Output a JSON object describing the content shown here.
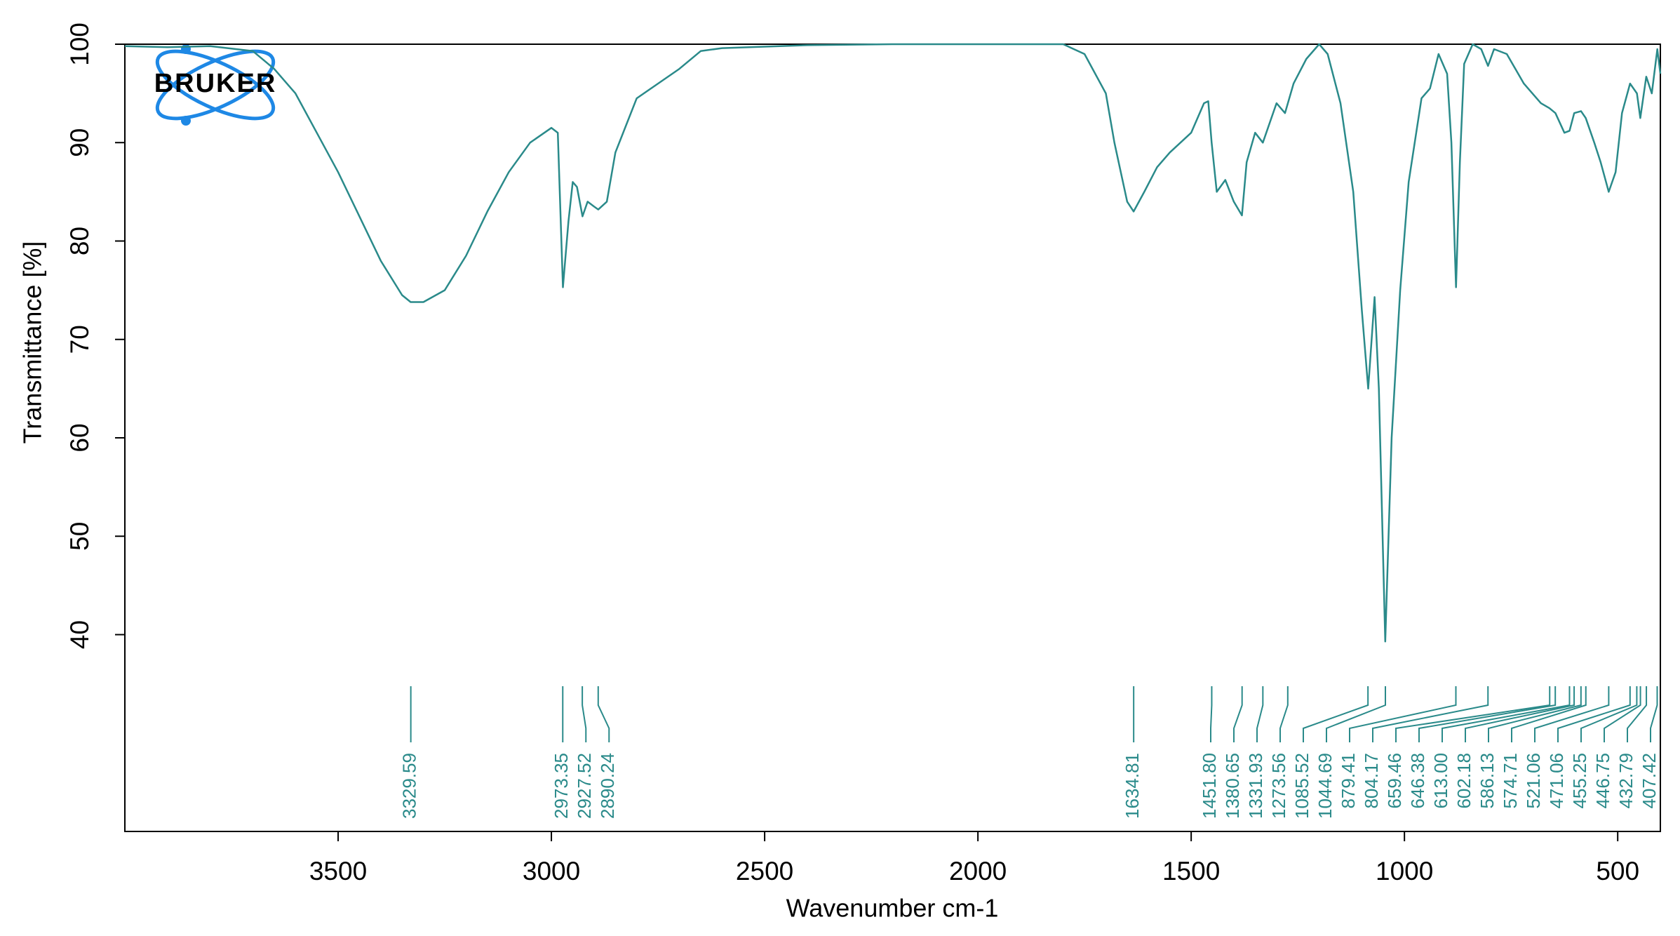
{
  "chart_data": {
    "type": "line",
    "logo": "BRUKER",
    "xlabel": "Wavenumber cm-1",
    "ylabel": "Transmittance [%]",
    "color": "#2a8a8a",
    "xlim": [
      4000,
      400
    ],
    "xticks": [
      3500,
      3000,
      2500,
      2000,
      1500,
      1000,
      500
    ],
    "ylim": [
      20,
      100
    ],
    "yticks": [
      40,
      50,
      60,
      70,
      80,
      90,
      100
    ],
    "x": [
      4000,
      3900,
      3800,
      3700,
      3650,
      3600,
      3550,
      3500,
      3450,
      3400,
      3350,
      3330,
      3300,
      3250,
      3200,
      3150,
      3100,
      3050,
      3000,
      2985,
      2973,
      2960,
      2950,
      2940,
      2927,
      2915,
      2900,
      2890,
      2870,
      2850,
      2800,
      2750,
      2700,
      2650,
      2600,
      2400,
      2200,
      2000,
      1800,
      1750,
      1700,
      1680,
      1650,
      1635,
      1610,
      1580,
      1550,
      1500,
      1470,
      1460,
      1452,
      1440,
      1420,
      1400,
      1381,
      1370,
      1350,
      1332,
      1300,
      1280,
      1260,
      1230,
      1200,
      1180,
      1150,
      1120,
      1100,
      1085,
      1070,
      1060,
      1045,
      1030,
      1010,
      990,
      960,
      940,
      920,
      900,
      890,
      879,
      870,
      860,
      840,
      820,
      804,
      790,
      760,
      720,
      680,
      660,
      646,
      625,
      613,
      602,
      586,
      575,
      555,
      540,
      521,
      505,
      490,
      471,
      455,
      447,
      433,
      420,
      407,
      400
    ],
    "values": [
      99.8,
      99.7,
      99.8,
      99.3,
      97.5,
      95,
      91,
      87,
      82.5,
      78,
      74.5,
      73.8,
      73.8,
      75,
      78.5,
      83,
      87,
      90,
      91.5,
      91,
      75.3,
      82,
      86,
      85.5,
      82.5,
      84,
      83.5,
      83.2,
      84,
      89,
      94.5,
      96,
      97.5,
      99.3,
      99.6,
      99.9,
      100,
      100,
      100,
      99,
      95,
      90,
      84,
      83,
      85,
      87.5,
      89,
      91,
      94,
      94.2,
      90,
      85,
      86.2,
      84,
      82.6,
      88,
      91,
      90,
      94,
      93,
      96,
      98.5,
      100,
      99,
      94,
      85,
      73,
      65,
      74.3,
      65,
      39.3,
      60,
      75,
      86,
      94.5,
      95.5,
      99,
      97,
      90,
      75.3,
      88,
      98,
      100,
      99.5,
      97.8,
      99.5,
      99,
      96,
      94,
      93.5,
      93,
      91,
      91.2,
      93,
      93.2,
      92.5,
      90,
      88,
      85,
      87,
      93,
      96,
      95,
      92.5,
      96.7,
      95,
      99.5,
      97
    ],
    "peaks": {
      "values": [
        3329.59,
        2973.35,
        2927.52,
        2890.24,
        1634.81,
        1451.8,
        1380.65,
        1331.93,
        1273.56,
        1085.52,
        1044.69,
        879.41,
        804.17,
        659.46,
        646.38,
        613,
        602.18,
        586.13,
        574.71,
        521.06,
        471.06,
        455.25,
        446.75,
        432.79,
        407.42
      ],
      "value_labels": [
        "3329.59",
        "2973.35",
        "2927.52",
        "2890.24",
        "1634.81",
        "1451.80",
        "1380.65",
        "1331.93",
        "1273.56",
        "1085.52",
        "1044.69",
        "879.41",
        "804.17",
        "659.46",
        "646.38",
        "613.00",
        "602.18",
        "586.13",
        "574.71",
        "521.06",
        "471.06",
        "455.25",
        "446.75",
        "432.79",
        "407.42"
      ]
    }
  }
}
